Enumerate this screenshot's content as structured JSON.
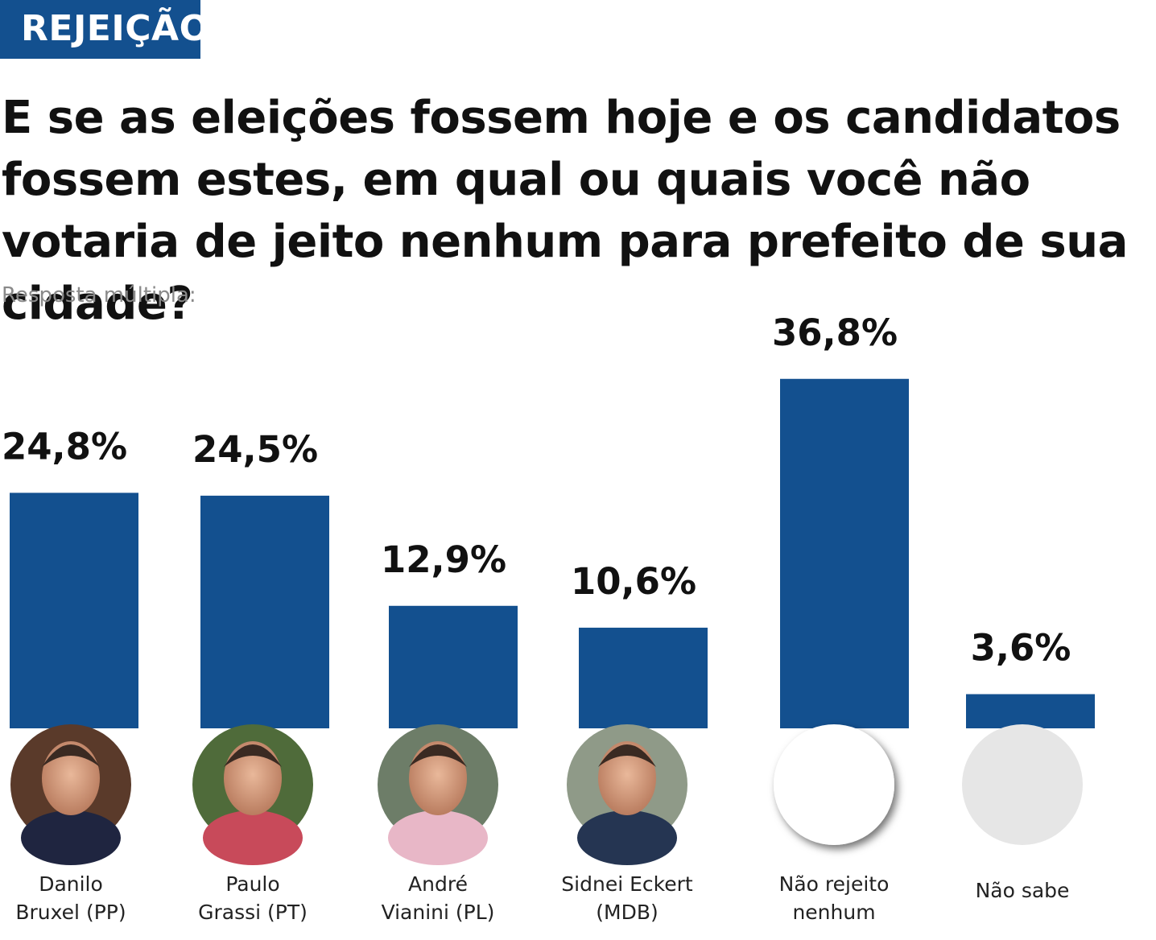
{
  "header": {
    "tag": "REJEIÇÃO",
    "title": "E se as eleições fossem hoje e os candidatos fossem estes, em qual ou quais você não votaria de jeito nenhum para prefeito de sua cidade?",
    "subtitle": "Resposta múltipla:"
  },
  "colors": {
    "bar": "#13508f",
    "tag_bg": "#13508f",
    "circle_grey": "#e6e6e6"
  },
  "chart_data": {
    "type": "bar",
    "title": "E se as eleições fossem hoje e os candidatos fossem estes, em qual ou quais você não votaria de jeito nenhum para prefeito de sua cidade?",
    "categories": [
      [
        "Danilo",
        "Bruxel (PP)"
      ],
      [
        "Paulo",
        "Grassi (PT)"
      ],
      [
        "André",
        "Vianini (PL)"
      ],
      [
        "Sidnei Eckert",
        "(MDB)"
      ],
      [
        "Não rejeito",
        "nenhum"
      ],
      [
        "Não sabe"
      ]
    ],
    "values": [
      24.8,
      24.5,
      12.9,
      10.6,
      36.8,
      3.6
    ],
    "value_labels": [
      "24,8%",
      "24,5%",
      "12,9%",
      "10,6%",
      "36,8%",
      "3,6%"
    ],
    "ylim": [
      0,
      40
    ],
    "grid": false,
    "legend": "none",
    "markers": [
      "photo-icon",
      "photo-icon",
      "photo-icon",
      "photo-icon",
      "white-circle",
      "grey-circle"
    ]
  }
}
